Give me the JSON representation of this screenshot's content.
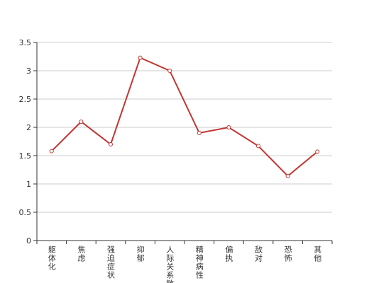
{
  "chart_data": {
    "type": "line",
    "categories": [
      "躯体化",
      "焦虑",
      "强迫症状",
      "抑郁",
      "人际关系敏感",
      "精神病性",
      "偏执",
      "敌对",
      "恐怖",
      "其他"
    ],
    "values": [
      1.58,
      2.1,
      1.7,
      3.23,
      3.0,
      1.9,
      2.0,
      1.67,
      1.14,
      1.57
    ],
    "color": "#c23531",
    "ylim": [
      0,
      3.5
    ],
    "yticks": [
      0,
      0.5,
      1,
      1.5,
      2,
      2.5,
      3,
      3.5
    ],
    "grid": true
  }
}
